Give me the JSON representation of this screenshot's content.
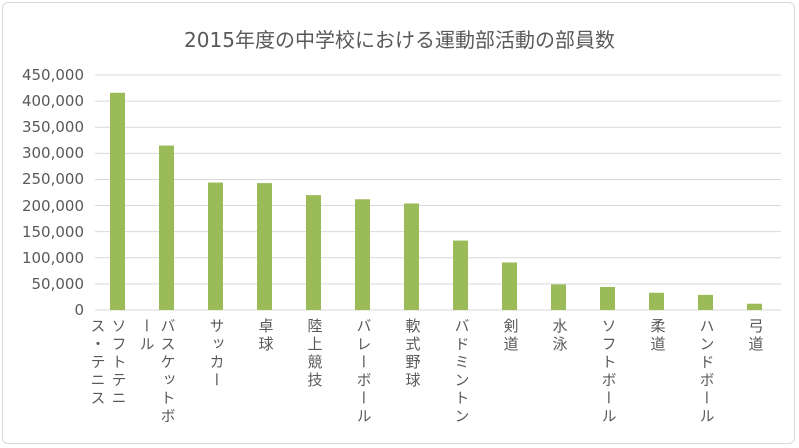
{
  "chart_data": {
    "type": "bar",
    "title": "2015年度の中学校における運動部活動の部員数",
    "xlabel": "",
    "ylabel": "",
    "ylim": [
      0,
      450000
    ],
    "yticks": [
      "0",
      "50,000",
      "100,000",
      "150,000",
      "200,000",
      "250,000",
      "300,000",
      "350,000",
      "400,000",
      "450,000"
    ],
    "ytick_values": [
      0,
      50000,
      100000,
      150000,
      200000,
      250000,
      300000,
      350000,
      400000,
      450000
    ],
    "grid": true,
    "legend": "none",
    "bar_color": "#9BBB59",
    "categories": [
      "ソフトテニス・テニス",
      "バスケットボール",
      "サッカー",
      "卓球",
      "陸上競技",
      "バレーボール",
      "軟式野球",
      "バドミントン",
      "剣道",
      "水泳",
      "ソフトボール",
      "柔道",
      "ハンドボール",
      "弓道"
    ],
    "values": [
      416000,
      315000,
      244000,
      243000,
      220000,
      212000,
      204000,
      133000,
      91000,
      49000,
      44000,
      33000,
      29000,
      12000
    ]
  }
}
